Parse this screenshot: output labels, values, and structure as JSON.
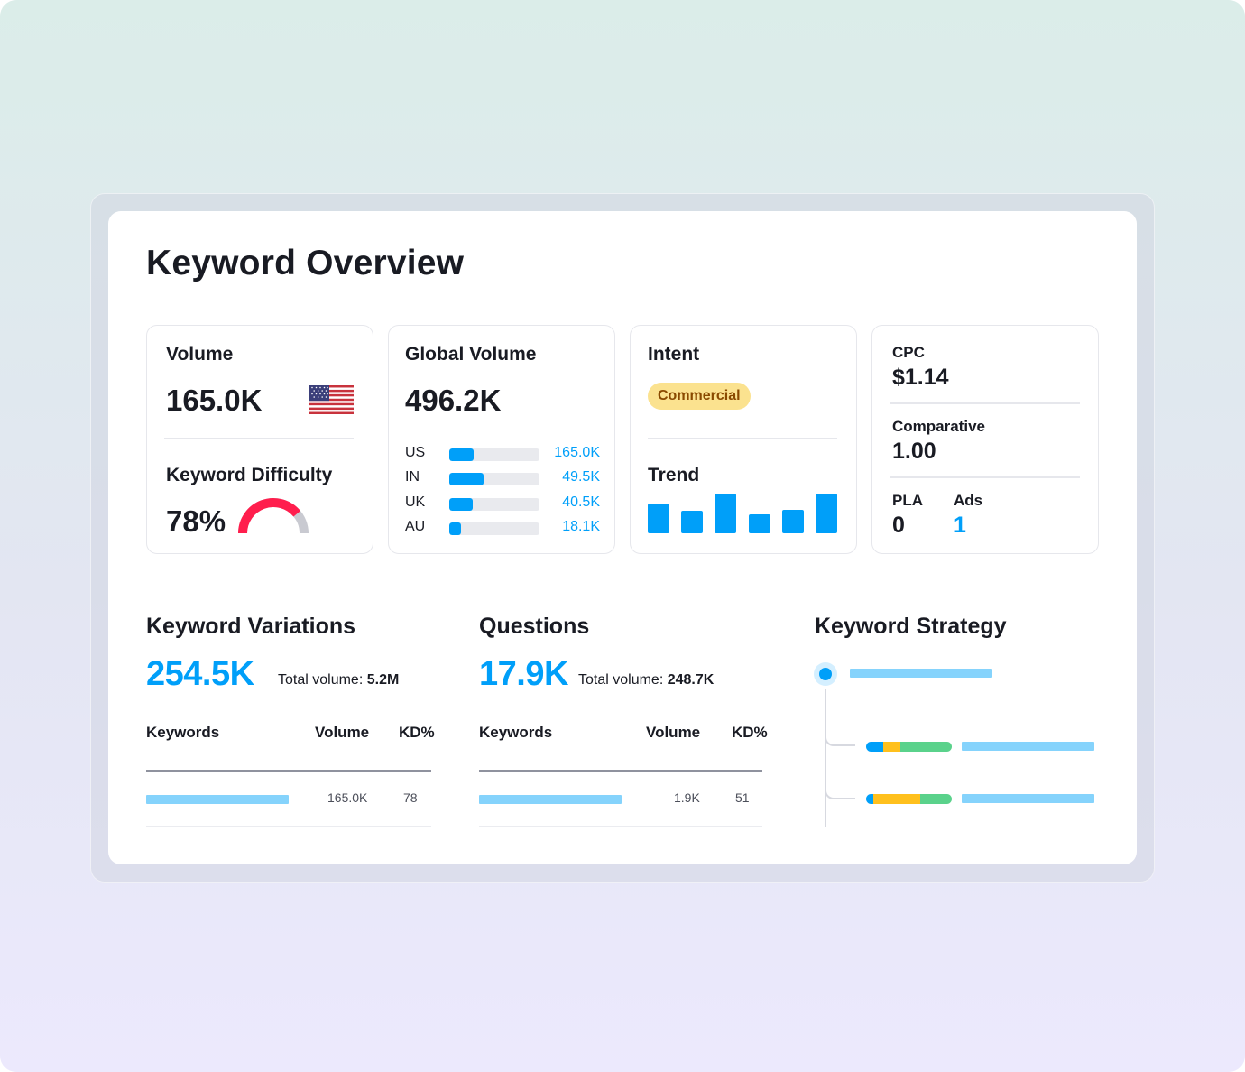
{
  "page_title": "Keyword Overview",
  "colors": {
    "accent": "#009ff9",
    "gauge_red": "#ff1e4d",
    "gauge_gray": "#c9cad1",
    "badge_bg": "#fbe28f",
    "badge_text": "#8a4a00",
    "placeholder_bar": "#85d3fc",
    "segment_blue": "#009ff9",
    "segment_yellow": "#ffc01d",
    "segment_green": "#5ad28b"
  },
  "volume": {
    "label": "Volume",
    "value": "165.0K",
    "flag_icon": "us-flag-icon"
  },
  "keyword_difficulty": {
    "label": "Keyword Difficulty",
    "value": "78%",
    "gauge_percent": 78
  },
  "global_volume": {
    "label": "Global Volume",
    "value": "496.2K",
    "rows": [
      {
        "country": "US",
        "value": "165.0K",
        "fill_fraction": 0.27
      },
      {
        "country": "IN",
        "value": "49.5K",
        "fill_fraction": 0.38
      },
      {
        "country": "UK",
        "value": "40.5K",
        "fill_fraction": 0.26
      },
      {
        "country": "AU",
        "value": "18.1K",
        "fill_fraction": 0.13
      }
    ]
  },
  "intent": {
    "label": "Intent",
    "badge": "Commercial"
  },
  "trend": {
    "label": "Trend",
    "bar_levels": [
      0.76,
      0.56,
      1.0,
      0.47,
      0.58,
      1.0
    ]
  },
  "cpc": {
    "cpc_label": "CPC",
    "cpc_value": "$1.14",
    "comparative_label": "Comparative",
    "comparative_value": "1.00",
    "pla_label": "PLA",
    "pla_value": "0",
    "ads_label": "Ads",
    "ads_value": "1"
  },
  "keyword_variations": {
    "title": "Keyword Variations",
    "count": "254.5K",
    "total_label": "Total volume: ",
    "total_value": "5.2M",
    "columns": [
      "Keywords",
      "Volume",
      "KD%"
    ],
    "rows": [
      {
        "volume": "165.0K",
        "kd": "78"
      }
    ]
  },
  "questions": {
    "title": "Questions",
    "count": "17.9K",
    "total_label": "Total volume: ",
    "total_value": "248.7K",
    "columns": [
      "Keywords",
      "Volume",
      "KD%"
    ],
    "rows": [
      {
        "volume": "1.9K",
        "kd": "51"
      }
    ]
  },
  "keyword_strategy": {
    "title": "Keyword Strategy",
    "branches": [
      {
        "segments": [
          0.2,
          0.2,
          0.6
        ]
      },
      {
        "segments": [
          0.08,
          0.55,
          0.37
        ]
      }
    ]
  }
}
